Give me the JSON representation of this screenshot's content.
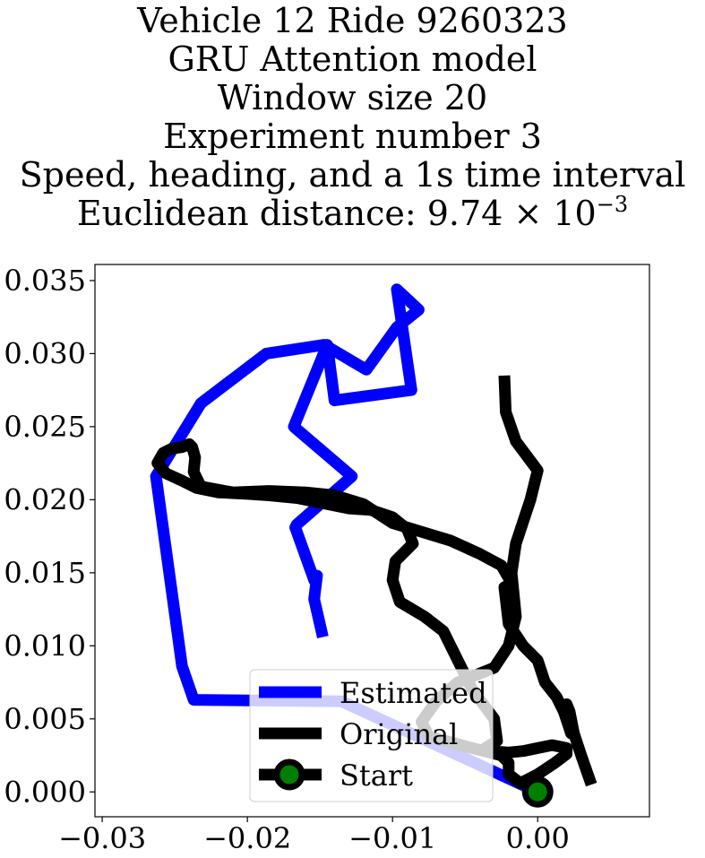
{
  "chart_data": {
    "type": "line",
    "title_lines": [
      "Vehicle 12 Ride 9260323",
      "GRU Attention model",
      "Window size 20",
      "Experiment number 3",
      "Speed, heading, and a 1s time interval"
    ],
    "distance_label": "Euclidean distance: 9.74",
    "distance_times": "×",
    "distance_base": "10",
    "distance_exponent": "−3",
    "xlim": [
      -0.0305,
      0.0077
    ],
    "ylim": [
      -0.0017,
      0.0361
    ],
    "x_ticks": [
      {
        "value": -0.03,
        "label": "−0.03"
      },
      {
        "value": -0.02,
        "label": "−0.02"
      },
      {
        "value": -0.01,
        "label": "−0.01"
      },
      {
        "value": 0.0,
        "label": "0.00"
      }
    ],
    "y_ticks": [
      {
        "value": 0.0,
        "label": "0.000"
      },
      {
        "value": 0.005,
        "label": "0.005"
      },
      {
        "value": 0.01,
        "label": "0.010"
      },
      {
        "value": 0.015,
        "label": "0.015"
      },
      {
        "value": 0.02,
        "label": "0.020"
      },
      {
        "value": 0.025,
        "label": "0.025"
      },
      {
        "value": 0.03,
        "label": "0.030"
      },
      {
        "value": 0.035,
        "label": "0.035"
      }
    ],
    "series": [
      {
        "name": "Estimated",
        "color": "#0000ff",
        "x": [
          0.0,
          -0.0135,
          -0.0237,
          -0.0245,
          -0.0263,
          -0.0232,
          -0.0187,
          -0.0147,
          -0.0118,
          -0.0097,
          -0.0082,
          -0.0097,
          -0.0087,
          -0.014,
          -0.0145,
          -0.0168,
          -0.0128,
          -0.0166,
          -0.0167,
          -0.0154,
          -0.0152,
          -0.0154,
          -0.0148
        ],
        "y": [
          0.0,
          0.0062,
          0.0063,
          0.0086,
          0.0216,
          0.0266,
          0.03,
          0.0306,
          0.0289,
          0.0318,
          0.033,
          0.0344,
          0.0275,
          0.0268,
          0.0306,
          0.025,
          0.0216,
          0.0183,
          0.0181,
          0.0145,
          0.0148,
          0.0132,
          0.0106
        ]
      },
      {
        "name": "Original",
        "color": "#000000",
        "x": [
          0.0037,
          0.003,
          0.0025,
          0.0022,
          0.002,
          0.0023,
          0.0018,
          0.0013,
          0.0005,
          0.0,
          -0.001,
          -0.002,
          -0.0023,
          -0.0018,
          -0.0025,
          -0.004,
          -0.006,
          -0.008,
          -0.01,
          -0.012,
          -0.014,
          -0.016,
          -0.0185,
          -0.021,
          -0.0232,
          -0.0237,
          -0.0236,
          -0.0238,
          -0.024,
          -0.0245,
          -0.0252,
          -0.0258,
          -0.0262,
          -0.0256,
          -0.0245,
          -0.0235,
          -0.022,
          -0.02,
          -0.0185,
          -0.0165,
          -0.015,
          -0.014,
          -0.013,
          -0.0115,
          -0.01,
          -0.009,
          -0.0086,
          -0.0098,
          -0.01,
          -0.0095,
          -0.0078,
          -0.0065,
          -0.0055,
          -0.0045,
          -0.003,
          -0.0028,
          -0.0036,
          -0.0033,
          -0.002,
          -0.001,
          -0.0,
          0.001,
          0.002,
          0.002,
          0.0012,
          0.0,
          -0.0012,
          -0.002,
          -0.002,
          -0.0025,
          -0.0045,
          -0.0075,
          -0.008,
          -0.007,
          -0.0055,
          -0.003,
          -0.002,
          -0.0015,
          -0.0018,
          -0.0015,
          -0.001,
          -0.0005,
          0.0,
          -0.0015,
          -0.0022,
          -0.0023
        ],
        "y": [
          0.0005,
          0.0025,
          0.004,
          0.0055,
          0.006,
          0.004,
          0.0055,
          0.0065,
          0.0075,
          0.009,
          0.01,
          0.0115,
          0.014,
          0.0143,
          0.0155,
          0.0163,
          0.0172,
          0.0178,
          0.0184,
          0.0197,
          0.0203,
          0.0205,
          0.0206,
          0.0205,
          0.0209,
          0.0219,
          0.0229,
          0.0236,
          0.0238,
          0.0236,
          0.0235,
          0.0232,
          0.0225,
          0.0218,
          0.0213,
          0.0208,
          0.0205,
          0.0204,
          0.0203,
          0.0201,
          0.0198,
          0.0196,
          0.0194,
          0.0193,
          0.0188,
          0.018,
          0.017,
          0.0158,
          0.0145,
          0.013,
          0.012,
          0.011,
          0.009,
          0.007,
          0.005,
          0.0035,
          0.003,
          0.0028,
          0.0027,
          0.0028,
          0.003,
          0.0032,
          0.003,
          0.0026,
          0.002,
          0.0012,
          0.0006,
          0.0012,
          0.002,
          0.0025,
          0.003,
          0.0038,
          0.0048,
          0.0062,
          0.0075,
          0.0085,
          0.01,
          0.012,
          0.015,
          0.017,
          0.0185,
          0.02,
          0.022,
          0.024,
          0.026,
          0.0285
        ]
      }
    ],
    "start": {
      "name": "Start",
      "x": 0.0,
      "y": 0.0,
      "outer_color": "#000000",
      "inner_color": "#008000"
    },
    "legend": {
      "position": "lower center",
      "entries": [
        {
          "label": "Estimated",
          "color": "#0000ff",
          "kind": "line"
        },
        {
          "label": "Original",
          "color": "#000000",
          "kind": "line"
        },
        {
          "label": "Start",
          "color": "#000000",
          "kind": "marker"
        }
      ]
    },
    "grid": false
  }
}
